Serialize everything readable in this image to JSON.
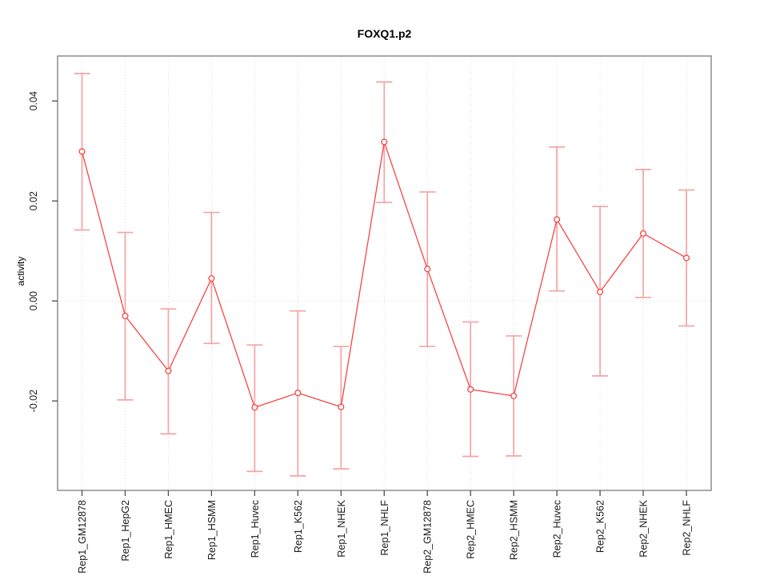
{
  "chart_data": {
    "type": "line",
    "title": "FOXQ1.p2",
    "xlabel": "",
    "ylabel": "activity",
    "categories": [
      "Rep1_GM12878",
      "Rep1_HepG2",
      "Rep1_HMEC",
      "Rep1_HSMM",
      "Rep1_Huvec",
      "Rep1_K562",
      "Rep1_NHEK",
      "Rep1_NHLF",
      "Rep2_GM12878",
      "Rep2_HMEC",
      "Rep2_HSMM",
      "Rep2_Huvec",
      "Rep2_K562",
      "Rep2_NHEK",
      "Rep2_NHLF"
    ],
    "series": [
      {
        "name": "activity",
        "values": [
          0.0299,
          -0.003,
          -0.014,
          0.0045,
          -0.0213,
          -0.0184,
          -0.0212,
          0.0318,
          0.0064,
          -0.0177,
          -0.019,
          0.0163,
          0.0018,
          0.0135,
          0.0086
        ],
        "error_low": [
          0.0142,
          -0.0198,
          -0.0266,
          -0.0085,
          -0.0341,
          -0.035,
          -0.0336,
          0.0197,
          -0.0091,
          -0.0311,
          -0.031,
          0.002,
          -0.015,
          0.0007,
          -0.005
        ],
        "error_high": [
          0.0455,
          0.0137,
          -0.0016,
          0.0177,
          -0.0088,
          -0.002,
          -0.0091,
          0.0438,
          0.0218,
          -0.0042,
          -0.007,
          0.0308,
          0.0189,
          0.0263,
          0.0222
        ]
      }
    ],
    "ytick_values": [
      -0.02,
      0,
      0.02,
      0.04
    ],
    "ytick_labels": [
      "-0.02",
      "0.00",
      "0.02",
      "0.04"
    ],
    "ylim": [
      -0.0379,
      0.049
    ],
    "marker": "open-circle",
    "legend": "none",
    "grid": {
      "vertical_dotted_per_category": true,
      "horizontal_dotted_at_zero": true
    },
    "colors": {
      "line": "#f74545",
      "error_bar": "#f5a3a3",
      "grid": "#d8d8d8",
      "frame": "#848484",
      "tick": "#4d4d4d",
      "text": "#1a1a1a"
    }
  }
}
